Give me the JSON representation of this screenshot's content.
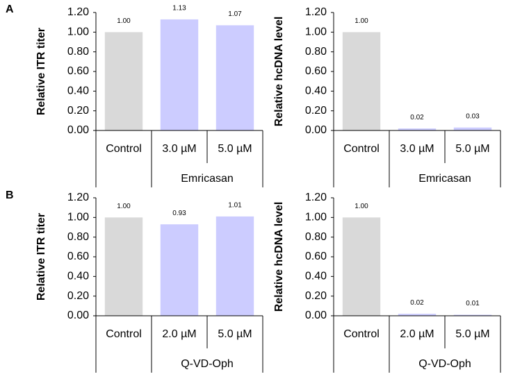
{
  "panel_labels": [
    "A",
    "B"
  ],
  "chart_data": [
    {
      "type": "bar",
      "ylabel": "Relative ITR titer",
      "categories": [
        "Control",
        "3.0 µM",
        "5.0 µM"
      ],
      "group_label": "Emricasan",
      "values": [
        1.0,
        1.13,
        1.07
      ],
      "value_labels": [
        "1.00",
        "1.13",
        "1.07"
      ],
      "colors": [
        "#d9d9d9",
        "#ccccff",
        "#ccccff"
      ],
      "ylim": [
        0,
        1.2
      ],
      "yticks": [
        {
          "value": 0,
          "label": "0.00"
        },
        {
          "value": 0.2,
          "label": "0.20"
        },
        {
          "value": 0.4,
          "label": "0.40"
        },
        {
          "value": 0.6,
          "label": "0.60"
        },
        {
          "value": 0.8,
          "label": "0.80"
        },
        {
          "value": 1,
          "label": "1.00"
        },
        {
          "value": 1.2,
          "label": "1.20"
        }
      ]
    },
    {
      "type": "bar",
      "ylabel": "Relative hcDNA level",
      "categories": [
        "Control",
        "3.0 µM",
        "5.0 µM"
      ],
      "group_label": "Emricasan",
      "values": [
        1.0,
        0.02,
        0.03
      ],
      "value_labels": [
        "1.00",
        "0.02",
        "0.03"
      ],
      "colors": [
        "#d9d9d9",
        "#ccccff",
        "#ccccff"
      ],
      "ylim": [
        0,
        1.2
      ],
      "yticks": [
        {
          "value": 0,
          "label": "0.00"
        },
        {
          "value": 0.2,
          "label": "0.20"
        },
        {
          "value": 0.4,
          "label": "0.40"
        },
        {
          "value": 0.6,
          "label": "0.60"
        },
        {
          "value": 0.8,
          "label": "0.80"
        },
        {
          "value": 1,
          "label": "1.00"
        },
        {
          "value": 1.2,
          "label": "1.20"
        }
      ]
    },
    {
      "type": "bar",
      "ylabel": "Relative ITR titer",
      "categories": [
        "Control",
        "2.0 µM",
        "5.0 µM"
      ],
      "group_label": "Q-VD-Oph",
      "values": [
        1.0,
        0.93,
        1.01
      ],
      "value_labels": [
        "1.00",
        "0.93",
        "1.01"
      ],
      "colors": [
        "#d9d9d9",
        "#ccccff",
        "#ccccff"
      ],
      "ylim": [
        0,
        1.2
      ],
      "yticks": [
        {
          "value": 0,
          "label": "0.00"
        },
        {
          "value": 0.2,
          "label": "0.20"
        },
        {
          "value": 0.4,
          "label": "0.40"
        },
        {
          "value": 0.6,
          "label": "0.60"
        },
        {
          "value": 0.8,
          "label": "0.80"
        },
        {
          "value": 1,
          "label": "1.00"
        },
        {
          "value": 1.2,
          "label": "1.20"
        }
      ]
    },
    {
      "type": "bar",
      "ylabel": "Relative hcDNA level",
      "categories": [
        "Control",
        "2.0 µM",
        "5.0 µM"
      ],
      "group_label": "Q-VD-Oph",
      "values": [
        1.0,
        0.02,
        0.01
      ],
      "value_labels": [
        "1.00",
        "0.02",
        "0.01"
      ],
      "colors": [
        "#d9d9d9",
        "#ccccff",
        "#ccccff"
      ],
      "ylim": [
        0,
        1.2
      ],
      "yticks": [
        {
          "value": 0,
          "label": "0.00"
        },
        {
          "value": 0.2,
          "label": "0.20"
        },
        {
          "value": 0.4,
          "label": "0.40"
        },
        {
          "value": 0.6,
          "label": "0.60"
        },
        {
          "value": 0.8,
          "label": "0.80"
        },
        {
          "value": 1,
          "label": "1.00"
        },
        {
          "value": 1.2,
          "label": "1.20"
        }
      ]
    }
  ]
}
